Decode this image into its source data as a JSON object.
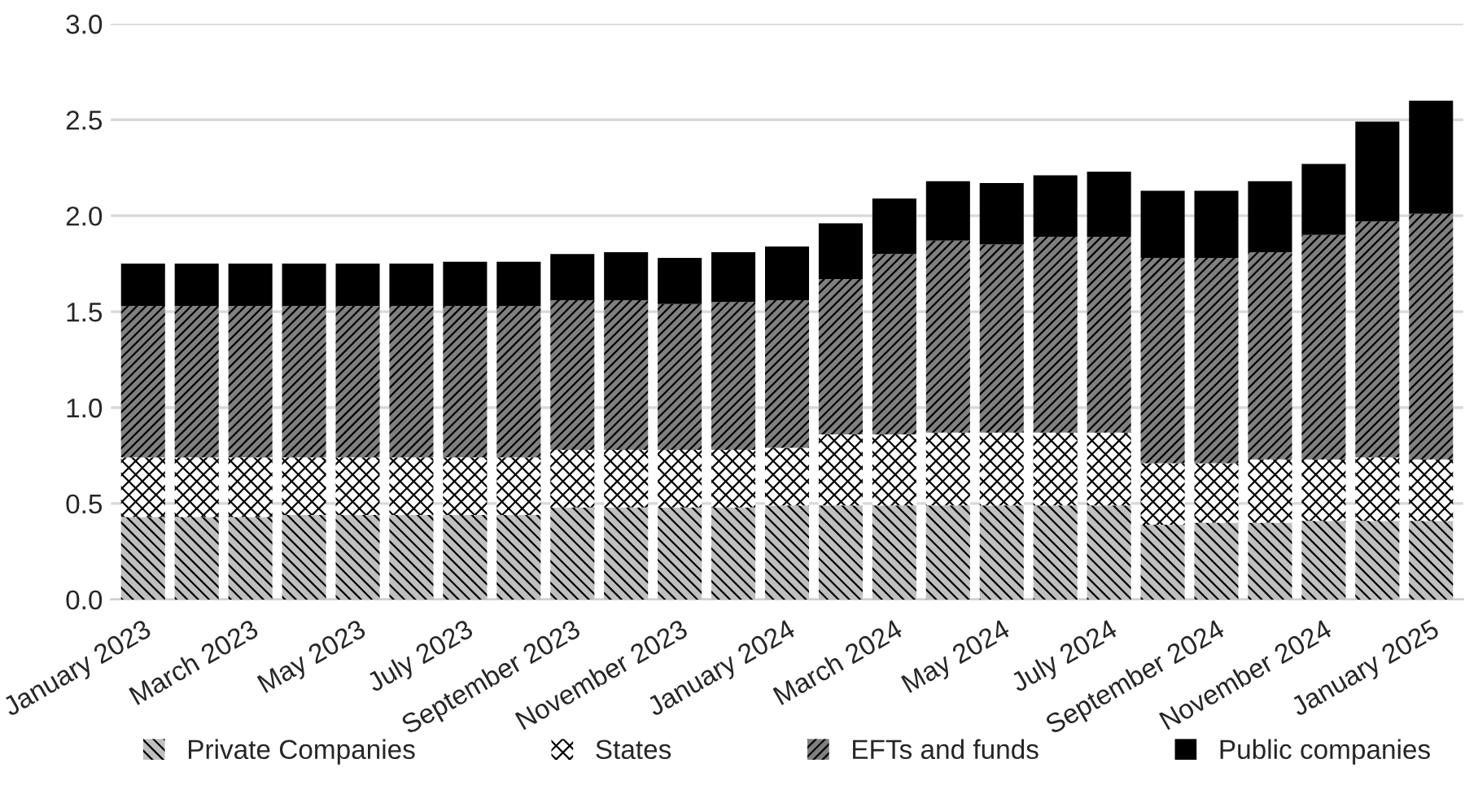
{
  "chart_data": {
    "type": "bar",
    "stacked": true,
    "categories": [
      "January 2023",
      null,
      "March 2023",
      null,
      "May 2023",
      null,
      "July 2023",
      null,
      "September 2023",
      null,
      "November 2023",
      null,
      "January 2024",
      null,
      "March 2024",
      null,
      "May 2024",
      null,
      "July 2024",
      null,
      "September 2024",
      null,
      "November 2024",
      null,
      "January 2025"
    ],
    "series": [
      {
        "name": "Private Companies",
        "color": "#bfbfbf",
        "values": [
          0.43,
          0.43,
          0.43,
          0.44,
          0.44,
          0.44,
          0.44,
          0.44,
          0.48,
          0.48,
          0.48,
          0.48,
          0.49,
          0.49,
          0.49,
          0.49,
          0.49,
          0.49,
          0.49,
          0.39,
          0.4,
          0.4,
          0.41,
          0.41,
          0.41
        ]
      },
      {
        "name": "States",
        "color": "#ffffff",
        "values": [
          0.31,
          0.31,
          0.31,
          0.3,
          0.3,
          0.3,
          0.3,
          0.3,
          0.3,
          0.3,
          0.3,
          0.3,
          0.3,
          0.37,
          0.37,
          0.38,
          0.38,
          0.38,
          0.38,
          0.32,
          0.31,
          0.33,
          0.32,
          0.33,
          0.32
        ]
      },
      {
        "name": "EFTs and funds",
        "color": "#808080",
        "values": [
          0.79,
          0.79,
          0.79,
          0.79,
          0.79,
          0.79,
          0.79,
          0.79,
          0.78,
          0.78,
          0.76,
          0.77,
          0.77,
          0.81,
          0.94,
          1.0,
          0.98,
          1.02,
          1.02,
          1.07,
          1.07,
          1.08,
          1.17,
          1.23,
          1.28
        ]
      },
      {
        "name": "Public companies",
        "color": "#000000",
        "values": [
          0.22,
          0.22,
          0.22,
          0.22,
          0.22,
          0.22,
          0.23,
          0.23,
          0.24,
          0.25,
          0.24,
          0.26,
          0.28,
          0.29,
          0.29,
          0.31,
          0.32,
          0.32,
          0.34,
          0.35,
          0.35,
          0.37,
          0.37,
          0.52,
          0.59
        ]
      }
    ],
    "ylim": [
      0,
      3.0
    ],
    "yticks": [
      {
        "value": 0,
        "label": "0.0"
      },
      {
        "value": 0.5,
        "label": "0.5"
      },
      {
        "value": 1.0,
        "label": "1.0"
      },
      {
        "value": 1.5,
        "label": "1.5"
      },
      {
        "value": 2.0,
        "label": "2.0"
      },
      {
        "value": 2.5,
        "label": "2.5"
      },
      {
        "value": 3.0,
        "label": "3.0"
      }
    ],
    "grid": "y",
    "legend": "bottom"
  }
}
